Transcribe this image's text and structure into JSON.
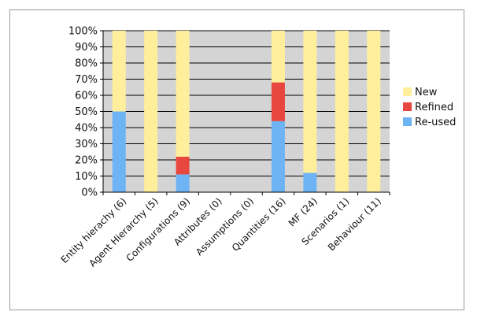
{
  "chart_data": {
    "type": "bar",
    "stacked": true,
    "categories": [
      "Entity hierachy (6)",
      "Agent Hierarchy (5)",
      "Configurations (9)",
      "Attributes (0)",
      "Assumptions (0)",
      "Quantities (16)",
      "MF (24)",
      "Scenarios (1)",
      "Behaviour (11)"
    ],
    "series": [
      {
        "name": "Re-used",
        "color": "#6eb4f5",
        "values": [
          50,
          0,
          11,
          0,
          0,
          44,
          12,
          0,
          0
        ]
      },
      {
        "name": "Refined",
        "color": "#e8473f",
        "values": [
          0,
          0,
          11,
          0,
          0,
          24,
          0,
          0,
          0
        ]
      },
      {
        "name": "New",
        "color": "#ffef9c",
        "values": [
          50,
          100,
          78,
          0,
          0,
          32,
          88,
          100,
          100
        ]
      }
    ],
    "y_tick_labels": [
      "0%",
      "10%",
      "20%",
      "30%",
      "40%",
      "50%",
      "60%",
      "70%",
      "80%",
      "90%",
      "100%"
    ],
    "ylim": [
      0,
      100
    ],
    "grid": true,
    "legend_position": "right",
    "legend_order": [
      "New",
      "Refined",
      "Re-used"
    ],
    "plot_background": "#d4d4d4",
    "title": "",
    "xlabel": "",
    "ylabel": ""
  }
}
